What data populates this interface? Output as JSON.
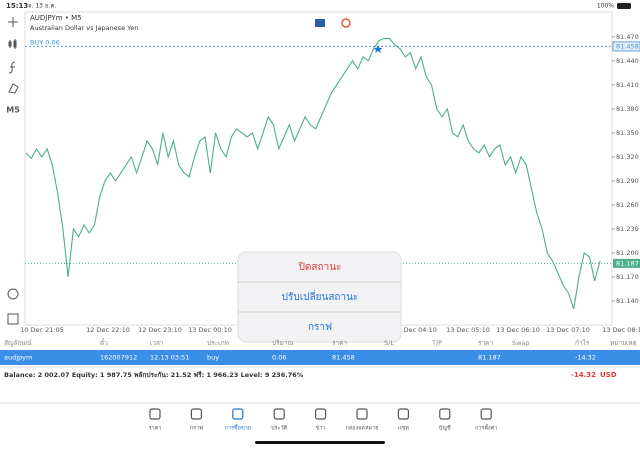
{
  "status_bar": {
    "time": "15:13",
    "date": "จ. 13 ธ.ค.",
    "battery": "100%"
  },
  "toolbar": {
    "timeframe": "M5"
  },
  "chart_data": {
    "type": "line",
    "symbol": "AUDJPYm • M5",
    "description": "Australian Dollar vs Japanese Yen",
    "position_label": "BUY 0.06",
    "position_price": 81.458,
    "bid_price": 81.187,
    "time_labels": [
      "10 Dec 21:05",
      "12 Dec 22:10",
      "12 Dec 23:10",
      "13 Dec 00:10",
      "13 Dec 04:10",
      "13 Dec 05:10",
      "13 Dec 06:10",
      "13 Dec 07:10",
      "13 Dec 08:1"
    ],
    "series": [
      {
        "color": "#4caf8a",
        "values": [
          81.325,
          81.318,
          81.33,
          81.32,
          81.33,
          81.31,
          81.275,
          81.23,
          81.17,
          81.23,
          81.22,
          81.235,
          81.225,
          81.235,
          81.27,
          81.29,
          81.3,
          81.29,
          81.3,
          81.31,
          81.32,
          81.3,
          81.32,
          81.34,
          81.33,
          81.31,
          81.35,
          81.32,
          81.34,
          81.31,
          81.3,
          81.295,
          81.32,
          81.34,
          81.345,
          81.3,
          81.35,
          81.33,
          81.32,
          81.345,
          81.355,
          81.35,
          81.345,
          81.35,
          81.33,
          81.35,
          81.37,
          81.36,
          81.33,
          81.345,
          81.36,
          81.34,
          81.355,
          81.37,
          81.36,
          81.355,
          81.37,
          81.385,
          81.4,
          81.41,
          81.42,
          81.43,
          81.44,
          81.43,
          81.445,
          81.44,
          81.455,
          81.465,
          81.468,
          81.468,
          81.46,
          81.455,
          81.445,
          81.45,
          81.43,
          81.445,
          81.42,
          81.41,
          81.38,
          81.37,
          81.38,
          81.35,
          81.345,
          81.36,
          81.34,
          81.33,
          81.325,
          81.335,
          81.32,
          81.33,
          81.335,
          81.31,
          81.32,
          81.3,
          81.32,
          81.31,
          81.28,
          81.25,
          81.23,
          81.2,
          81.19,
          81.175,
          81.16,
          81.15,
          81.13,
          81.17,
          81.2,
          81.195,
          81.165,
          81.19
        ]
      }
    ],
    "ylim": [
      81.11,
      81.501
    ],
    "yticks": [
      {
        "value": 81.47,
        "label": "81.470"
      },
      {
        "value": 81.44,
        "label": "81.440"
      },
      {
        "value": 81.41,
        "label": "81.410"
      },
      {
        "value": 81.38,
        "label": "81.380"
      },
      {
        "value": 81.35,
        "label": "81.350"
      },
      {
        "value": 81.32,
        "label": "81.320"
      },
      {
        "value": 81.29,
        "label": "81.290"
      },
      {
        "value": 81.26,
        "label": "81.260"
      },
      {
        "value": 81.23,
        "label": "81.230"
      },
      {
        "value": 81.2,
        "label": "81.200"
      },
      {
        "value": 81.17,
        "label": "81.170"
      },
      {
        "value": 81.14,
        "label": "81.140"
      }
    ]
  },
  "context_menu": {
    "items": [
      "ปิดสถานะ",
      "ปรับเปลี่ยนสถานะ",
      "กราฟ"
    ]
  },
  "table": {
    "columns": [
      "สัญลักษณ์",
      "ตั๋ว",
      "เวลา",
      "ประเภท",
      "ปริมาณ",
      "ราคา",
      "S/L",
      "T/P",
      "ราคา",
      "Swap",
      "กำไร",
      "หมายเหตุ"
    ],
    "rows": [
      [
        "audjpym",
        "162007912",
        "12.13 03:51",
        "buy",
        "0.06",
        "81.458",
        null,
        null,
        "81.187",
        null,
        "-14.32",
        null
      ]
    ]
  },
  "summary": {
    "text": "Balance: 2 002.07 Equity: 1 987.75 พลักประกัน: 21.52 ฟรี: 1 966.23 Level: 9 236.76%",
    "profit": "-14.32",
    "currency": "USD"
  },
  "tabs": [
    "ราคา",
    "กราฟ",
    "การซื้อขาย",
    "ประวัติ",
    "ข่าว",
    "กล่องจดหมาย",
    "แชท",
    "บัญชี",
    "การตั้งค่า"
  ],
  "active_tab": "การซื้อขาย"
}
